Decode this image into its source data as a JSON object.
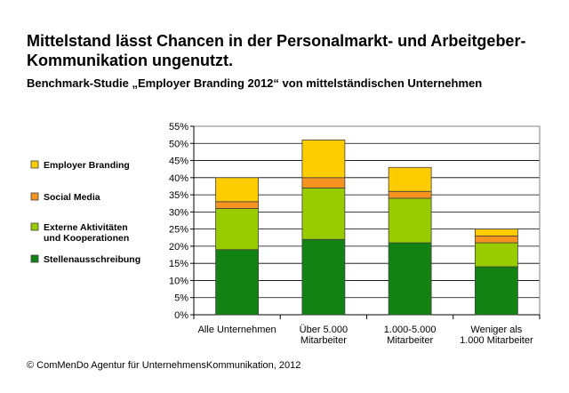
{
  "title": "Mittelstand lässt Chancen in der Personalmarkt- und Arbeitgeber-Kommunikation ungenutzt.",
  "subtitle": "Benchmark-Studie „Employer Branding 2012“ von mittelständischen Unternehmen",
  "footer": "© ComMenDo Agentur für UnternehmensKommunikation, 2012",
  "colors": {
    "stellen": "#128312",
    "extern": "#99CC00",
    "social": "#F79420",
    "employer": "#FFCC00",
    "grid": "#000000",
    "plot_bg": "#ffffff"
  },
  "chart_data": {
    "type": "bar",
    "stacked": true,
    "title": "",
    "xlabel": "",
    "ylabel": "",
    "ylim": [
      0,
      55
    ],
    "y_tick_step": 5,
    "y_tick_suffix": "%",
    "grid": true,
    "legend_position": "left",
    "categories": [
      [
        "Alle Unternehmen"
      ],
      [
        "Über 5.000",
        "Mitarbeiter"
      ],
      [
        "1.000-5.000",
        "Mitarbeiter"
      ],
      [
        "Weniger als",
        "1.000 Mitarbeiter"
      ]
    ],
    "series": [
      {
        "name": [
          "Stellenausschreibung"
        ],
        "color_key": "stellen",
        "values": [
          19,
          22,
          21,
          14
        ]
      },
      {
        "name": [
          "Externe Aktivitäten",
          "und Kooperationen"
        ],
        "color_key": "extern",
        "values": [
          12,
          15,
          13,
          7
        ]
      },
      {
        "name": [
          "Social Media"
        ],
        "color_key": "social",
        "values": [
          2,
          3,
          2,
          2
        ]
      },
      {
        "name": [
          "Employer Branding"
        ],
        "color_key": "employer",
        "values": [
          7,
          11,
          7,
          2
        ]
      }
    ]
  }
}
